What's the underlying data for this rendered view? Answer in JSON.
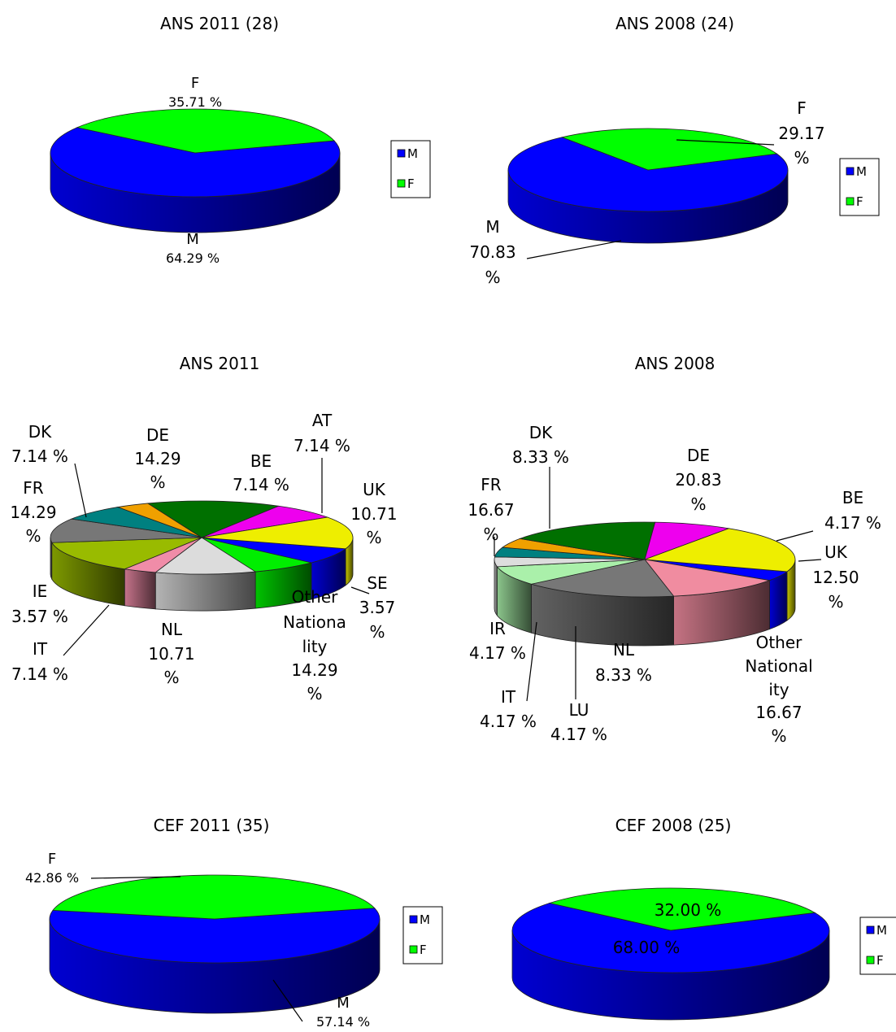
{
  "chart_data": [
    {
      "type": "pie",
      "title": "ANS 2011 (28)",
      "slices": [
        {
          "name": "M",
          "value": 64.29,
          "label": "M",
          "pct": "64.29 %",
          "color": "#0000ff"
        },
        {
          "name": "F",
          "value": 35.71,
          "label": "F",
          "pct": "35.71 %",
          "color": "#00ff00"
        }
      ],
      "legend": {
        "placement": "right",
        "items": [
          {
            "name": "M",
            "color": "#0000ff"
          },
          {
            "name": "F",
            "color": "#00ff00"
          }
        ]
      }
    },
    {
      "type": "pie",
      "title": "ANS 2008 (24)",
      "slices": [
        {
          "name": "M",
          "value": 70.83,
          "label": "M",
          "pct": "70.83 %",
          "color": "#0000ff"
        },
        {
          "name": "F",
          "value": 29.17,
          "label": "F",
          "pct": "29.17 %",
          "color": "#00ff00"
        }
      ],
      "legend": {
        "placement": "right",
        "items": [
          {
            "name": "M",
            "color": "#0000ff"
          },
          {
            "name": "F",
            "color": "#00ff00"
          }
        ]
      }
    },
    {
      "type": "pie",
      "title": "ANS 2011",
      "slices": [
        {
          "name": "BE",
          "value": 7.14,
          "label": "BE",
          "pct": "7.14 %",
          "color": "#0000ff"
        },
        {
          "name": "AT",
          "value": 7.14,
          "label": "AT",
          "pct": "7.14 %",
          "color": "#00ee00"
        },
        {
          "name": "UK",
          "value": 10.71,
          "label": "UK",
          "pct": "10.71 %",
          "color": "#dcdcdc"
        },
        {
          "name": "SE",
          "value": 3.57,
          "label": "SE",
          "pct": "3.57 %",
          "color": "#f08ca8"
        },
        {
          "name": "Other Nationality",
          "value": 14.29,
          "label": "Other Nationality",
          "pct": "14.29 %",
          "color": "#99bb00"
        },
        {
          "name": "NL",
          "value": 10.71,
          "label": "NL",
          "pct": "10.71 %",
          "color": "#777777"
        },
        {
          "name": "IT",
          "value": 7.14,
          "label": "IT",
          "pct": "7.14 %",
          "color": "#008080"
        },
        {
          "name": "IE",
          "value": 3.57,
          "label": "IE",
          "pct": "3.57 %",
          "color": "#f0a000"
        },
        {
          "name": "FR",
          "value": 14.29,
          "label": "FR",
          "pct": "14.29 %",
          "color": "#007000"
        },
        {
          "name": "DK",
          "value": 7.14,
          "label": "DK",
          "pct": "7.14 %",
          "color": "#ee00ee"
        },
        {
          "name": "DE",
          "value": 14.29,
          "label": "DE",
          "pct": "14.29 %",
          "color": "#eeee00"
        }
      ]
    },
    {
      "type": "pie",
      "title": "ANS 2008",
      "slices": [
        {
          "name": "BE",
          "value": 4.17,
          "label": "BE",
          "pct": "4.17 %",
          "color": "#0000ff"
        },
        {
          "name": "UK",
          "value": 12.5,
          "label": "UK",
          "pct": "12.50 %",
          "color": "#f08ca0"
        },
        {
          "name": "Other Nationality",
          "value": 16.67,
          "label": "Other Nationality",
          "pct": "16.67 %",
          "color": "#777777"
        },
        {
          "name": "NL",
          "value": 8.33,
          "label": "NL",
          "pct": "8.33 %",
          "color": "#aaf0aa"
        },
        {
          "name": "LU",
          "value": 4.17,
          "label": "LU",
          "pct": "4.17 %",
          "color": "#dddddd"
        },
        {
          "name": "IT",
          "value": 4.17,
          "label": "IT",
          "pct": "4.17 %",
          "color": "#008080"
        },
        {
          "name": "IR",
          "value": 4.17,
          "label": "IR",
          "pct": "4.17 %",
          "color": "#f0a000"
        },
        {
          "name": "FR",
          "value": 16.67,
          "label": "FR",
          "pct": "16.67 %",
          "color": "#007000"
        },
        {
          "name": "DK",
          "value": 8.33,
          "label": "DK",
          "pct": "8.33 %",
          "color": "#ee00ee"
        },
        {
          "name": "DE",
          "value": 20.83,
          "label": "DE",
          "pct": "20.83 %",
          "color": "#eeee00"
        }
      ]
    },
    {
      "type": "pie",
      "title": "CEF 2011 (35)",
      "slices": [
        {
          "name": "M",
          "value": 57.14,
          "label": "M",
          "pct": "57.14 %",
          "color": "#0000ff"
        },
        {
          "name": "F",
          "value": 42.86,
          "label": "F",
          "pct": "42.86 %",
          "color": "#00ff00"
        }
      ],
      "legend": {
        "placement": "right",
        "items": [
          {
            "name": "M",
            "color": "#0000ff"
          },
          {
            "name": "F",
            "color": "#00ff00"
          }
        ]
      }
    },
    {
      "type": "pie",
      "title": "CEF 2008 (25)",
      "slices": [
        {
          "name": "M",
          "value": 68.0,
          "label": "",
          "pct": "68.00 %",
          "color": "#0000ff"
        },
        {
          "name": "F",
          "value": 32.0,
          "label": "",
          "pct": "32.00 %",
          "color": "#00ff00"
        }
      ],
      "legend": {
        "placement": "right",
        "items": [
          {
            "name": "M",
            "color": "#0000ff"
          },
          {
            "name": "F",
            "color": "#00ff00"
          }
        ]
      }
    }
  ]
}
